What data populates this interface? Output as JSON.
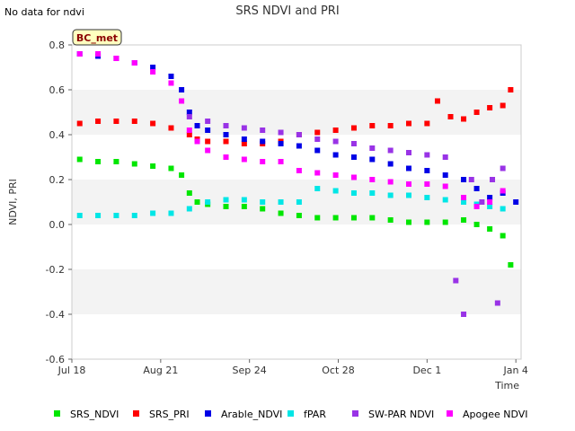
{
  "note": "No data for ndvi",
  "station_label": "BC_met",
  "chart_data": {
    "type": "scatter",
    "title": "SRS NDVI and PRI",
    "xlabel": "Time",
    "ylabel": "NDVI, PRI",
    "x_ticks": [
      "Jul 18",
      "Aug 21",
      "Sep 24",
      "Oct 28",
      "Dec 1",
      "Jan 4"
    ],
    "y_ticks": [
      "-0.6",
      "-0.4",
      "-0.2",
      "0.0",
      "0.2",
      "0.4",
      "0.6",
      "0.8"
    ],
    "xlim": [
      "2023-07-18",
      "2024-01-06"
    ],
    "ylim": [
      -0.6,
      0.8
    ],
    "grid_bands": true,
    "legend_placement": "bottom",
    "series": [
      {
        "name": "SRS_NDVI",
        "color": "#00e600",
        "points": [
          [
            "2023-07-21",
            0.29
          ],
          [
            "2023-07-28",
            0.28
          ],
          [
            "2023-08-04",
            0.28
          ],
          [
            "2023-08-11",
            0.27
          ],
          [
            "2023-08-18",
            0.26
          ],
          [
            "2023-08-25",
            0.25
          ],
          [
            "2023-08-29",
            0.22
          ],
          [
            "2023-09-01",
            0.14
          ],
          [
            "2023-09-04",
            0.1
          ],
          [
            "2023-09-08",
            0.09
          ],
          [
            "2023-09-15",
            0.08
          ],
          [
            "2023-09-22",
            0.08
          ],
          [
            "2023-09-29",
            0.07
          ],
          [
            "2023-10-06",
            0.05
          ],
          [
            "2023-10-13",
            0.04
          ],
          [
            "2023-10-20",
            0.03
          ],
          [
            "2023-10-27",
            0.03
          ],
          [
            "2023-11-03",
            0.03
          ],
          [
            "2023-11-10",
            0.03
          ],
          [
            "2023-11-17",
            0.02
          ],
          [
            "2023-11-24",
            0.01
          ],
          [
            "2023-12-01",
            0.01
          ],
          [
            "2023-12-08",
            0.01
          ],
          [
            "2023-12-15",
            0.02
          ],
          [
            "2023-12-20",
            0.0
          ],
          [
            "2023-12-25",
            -0.02
          ],
          [
            "2023-12-30",
            -0.05
          ],
          [
            "2024-01-02",
            -0.18
          ]
        ]
      },
      {
        "name": "SRS_PRI",
        "color": "#ff0000",
        "points": [
          [
            "2023-07-21",
            0.45
          ],
          [
            "2023-07-28",
            0.46
          ],
          [
            "2023-08-04",
            0.46
          ],
          [
            "2023-08-11",
            0.46
          ],
          [
            "2023-08-18",
            0.45
          ],
          [
            "2023-08-25",
            0.43
          ],
          [
            "2023-09-01",
            0.4
          ],
          [
            "2023-09-04",
            0.38
          ],
          [
            "2023-09-08",
            0.37
          ],
          [
            "2023-09-15",
            0.37
          ],
          [
            "2023-09-22",
            0.36
          ],
          [
            "2023-09-29",
            0.36
          ],
          [
            "2023-10-06",
            0.37
          ],
          [
            "2023-10-13",
            0.4
          ],
          [
            "2023-10-20",
            0.41
          ],
          [
            "2023-10-27",
            0.42
          ],
          [
            "2023-11-03",
            0.43
          ],
          [
            "2023-11-10",
            0.44
          ],
          [
            "2023-11-17",
            0.44
          ],
          [
            "2023-11-24",
            0.45
          ],
          [
            "2023-12-01",
            0.45
          ],
          [
            "2023-12-05",
            0.55
          ],
          [
            "2023-12-10",
            0.48
          ],
          [
            "2023-12-15",
            0.47
          ],
          [
            "2023-12-20",
            0.5
          ],
          [
            "2023-12-25",
            0.52
          ],
          [
            "2023-12-30",
            0.53
          ],
          [
            "2024-01-02",
            0.6
          ]
        ]
      },
      {
        "name": "Arable_NDVI",
        "color": "#0000e6",
        "points": [
          [
            "2023-07-21",
            0.76
          ],
          [
            "2023-07-28",
            0.75
          ],
          [
            "2023-08-04",
            0.74
          ],
          [
            "2023-08-11",
            0.72
          ],
          [
            "2023-08-18",
            0.7
          ],
          [
            "2023-08-25",
            0.66
          ],
          [
            "2023-08-29",
            0.6
          ],
          [
            "2023-09-01",
            0.5
          ],
          [
            "2023-09-04",
            0.44
          ],
          [
            "2023-09-08",
            0.42
          ],
          [
            "2023-09-15",
            0.4
          ],
          [
            "2023-09-22",
            0.38
          ],
          [
            "2023-09-29",
            0.37
          ],
          [
            "2023-10-06",
            0.36
          ],
          [
            "2023-10-13",
            0.35
          ],
          [
            "2023-10-20",
            0.33
          ],
          [
            "2023-10-27",
            0.31
          ],
          [
            "2023-11-03",
            0.3
          ],
          [
            "2023-11-10",
            0.29
          ],
          [
            "2023-11-17",
            0.27
          ],
          [
            "2023-11-24",
            0.25
          ],
          [
            "2023-12-01",
            0.24
          ],
          [
            "2023-12-08",
            0.22
          ],
          [
            "2023-12-15",
            0.2
          ],
          [
            "2023-12-20",
            0.16
          ],
          [
            "2023-12-25",
            0.12
          ],
          [
            "2023-12-30",
            0.14
          ],
          [
            "2024-01-04",
            0.1
          ]
        ]
      },
      {
        "name": "fPAR",
        "color": "#00e6e6",
        "points": [
          [
            "2023-07-21",
            0.04
          ],
          [
            "2023-07-28",
            0.04
          ],
          [
            "2023-08-04",
            0.04
          ],
          [
            "2023-08-11",
            0.04
          ],
          [
            "2023-08-18",
            0.05
          ],
          [
            "2023-08-25",
            0.05
          ],
          [
            "2023-09-01",
            0.07
          ],
          [
            "2023-09-08",
            0.1
          ],
          [
            "2023-09-15",
            0.11
          ],
          [
            "2023-09-22",
            0.11
          ],
          [
            "2023-09-29",
            0.1
          ],
          [
            "2023-10-06",
            0.1
          ],
          [
            "2023-10-13",
            0.1
          ],
          [
            "2023-10-20",
            0.16
          ],
          [
            "2023-10-27",
            0.15
          ],
          [
            "2023-11-03",
            0.14
          ],
          [
            "2023-11-10",
            0.14
          ],
          [
            "2023-11-17",
            0.13
          ],
          [
            "2023-11-24",
            0.13
          ],
          [
            "2023-12-01",
            0.12
          ],
          [
            "2023-12-08",
            0.11
          ],
          [
            "2023-12-15",
            0.1
          ],
          [
            "2023-12-20",
            0.09
          ],
          [
            "2023-12-25",
            0.08
          ],
          [
            "2023-12-30",
            0.07
          ]
        ]
      },
      {
        "name": "SW-PAR NDVI",
        "color": "#9933e6",
        "points": [
          [
            "2023-09-01",
            0.48
          ],
          [
            "2023-09-08",
            0.46
          ],
          [
            "2023-09-15",
            0.44
          ],
          [
            "2023-09-22",
            0.43
          ],
          [
            "2023-09-29",
            0.42
          ],
          [
            "2023-10-06",
            0.41
          ],
          [
            "2023-10-13",
            0.4
          ],
          [
            "2023-10-20",
            0.38
          ],
          [
            "2023-10-27",
            0.37
          ],
          [
            "2023-11-03",
            0.36
          ],
          [
            "2023-11-10",
            0.34
          ],
          [
            "2023-11-17",
            0.33
          ],
          [
            "2023-11-24",
            0.32
          ],
          [
            "2023-12-01",
            0.31
          ],
          [
            "2023-12-08",
            0.3
          ],
          [
            "2023-12-12",
            -0.25
          ],
          [
            "2023-12-15",
            -0.4
          ],
          [
            "2023-12-18",
            0.2
          ],
          [
            "2023-12-22",
            0.1
          ],
          [
            "2023-12-26",
            0.2
          ],
          [
            "2023-12-28",
            -0.35
          ],
          [
            "2023-12-30",
            0.25
          ]
        ]
      },
      {
        "name": "Apogee NDVI",
        "color": "#ff00ff",
        "points": [
          [
            "2023-07-21",
            0.76
          ],
          [
            "2023-07-28",
            0.76
          ],
          [
            "2023-08-04",
            0.74
          ],
          [
            "2023-08-11",
            0.72
          ],
          [
            "2023-08-18",
            0.68
          ],
          [
            "2023-08-25",
            0.63
          ],
          [
            "2023-08-29",
            0.55
          ],
          [
            "2023-09-01",
            0.42
          ],
          [
            "2023-09-04",
            0.37
          ],
          [
            "2023-09-08",
            0.33
          ],
          [
            "2023-09-15",
            0.3
          ],
          [
            "2023-09-22",
            0.29
          ],
          [
            "2023-09-29",
            0.28
          ],
          [
            "2023-10-06",
            0.28
          ],
          [
            "2023-10-13",
            0.24
          ],
          [
            "2023-10-20",
            0.23
          ],
          [
            "2023-10-27",
            0.22
          ],
          [
            "2023-11-03",
            0.21
          ],
          [
            "2023-11-10",
            0.2
          ],
          [
            "2023-11-17",
            0.19
          ],
          [
            "2023-11-24",
            0.18
          ],
          [
            "2023-12-01",
            0.18
          ],
          [
            "2023-12-08",
            0.17
          ],
          [
            "2023-12-15",
            0.12
          ],
          [
            "2023-12-20",
            0.08
          ],
          [
            "2023-12-25",
            0.1
          ],
          [
            "2023-12-30",
            0.15
          ]
        ]
      }
    ]
  }
}
